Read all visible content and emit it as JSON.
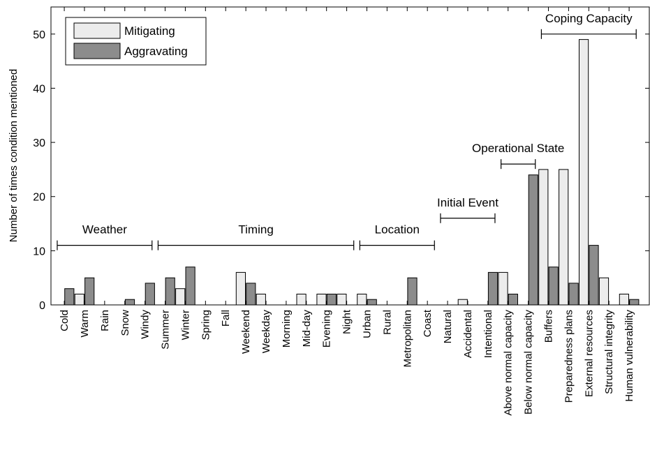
{
  "chart_data": {
    "type": "bar",
    "ylabel": "Number of times condition mentioned",
    "ylim": [
      0,
      55
    ],
    "yticks": [
      0,
      10,
      20,
      30,
      40,
      50
    ],
    "grid": false,
    "legend_position": "top-left",
    "colors": {
      "Mitigating": "#ececec",
      "Aggravating": "#8c8c8c"
    },
    "categories": [
      "Cold",
      "Warm",
      "Rain",
      "Snow",
      "Windy",
      "Summer",
      "Winter",
      "Spring",
      "Fall",
      "Weekend",
      "Weekday",
      "Morning",
      "Mid-day",
      "Evening",
      "Night",
      "Urban",
      "Rural",
      "Metropolitan",
      "Coast",
      "Natural",
      "Accidental",
      "Intentional",
      "Above normal capacity",
      "Below normal capacity",
      "Buffers",
      "Preparedness plans",
      "External resources",
      "Structural integrity",
      "Human vulnerability"
    ],
    "series": [
      {
        "name": "Mitigating",
        "values": [
          0,
          2,
          0,
          0,
          0,
          0,
          3,
          0,
          0,
          6,
          2,
          0,
          2,
          2,
          2,
          2,
          0,
          0,
          0,
          0,
          1,
          0,
          6,
          0,
          25,
          25,
          49,
          5,
          2
        ]
      },
      {
        "name": "Aggravating",
        "values": [
          3,
          5,
          0,
          1,
          4,
          5,
          7,
          0,
          0,
          4,
          0,
          0,
          0,
          2,
          0,
          1,
          0,
          5,
          0,
          0,
          0,
          6,
          2,
          24,
          7,
          4,
          11,
          0,
          1
        ]
      }
    ],
    "groups": [
      {
        "label": "Weather",
        "start": 0,
        "end": 4,
        "level": 11
      },
      {
        "label": "Timing",
        "start": 5,
        "end": 14,
        "level": 11
      },
      {
        "label": "Location",
        "start": 15,
        "end": 18,
        "level": 11
      },
      {
        "label": "Initial Event",
        "start": 19,
        "end": 21,
        "level": 16
      },
      {
        "label": "Operational State",
        "start": 22,
        "end": 23,
        "level": 26
      },
      {
        "label": "Coping Capacity",
        "start": 24,
        "end": 28,
        "level": 50
      }
    ]
  }
}
